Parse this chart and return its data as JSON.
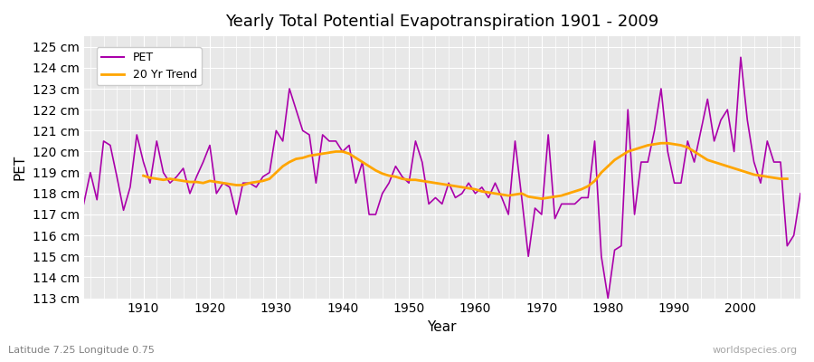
{
  "title": "Yearly Total Potential Evapotranspiration 1901 - 2009",
  "xlabel": "Year",
  "ylabel": "PET",
  "subtitle": "Latitude 7.25 Longitude 0.75",
  "watermark": "worldspecies.org",
  "pet_color": "#aa00aa",
  "trend_color": "#ffa500",
  "background_color": "#e8e8e8",
  "ylim": [
    113,
    125.5
  ],
  "yticks": [
    113,
    114,
    115,
    116,
    117,
    118,
    119,
    120,
    121,
    122,
    123,
    124,
    125
  ],
  "years": [
    1901,
    1902,
    1903,
    1904,
    1905,
    1906,
    1907,
    1908,
    1909,
    1910,
    1911,
    1912,
    1913,
    1914,
    1915,
    1916,
    1917,
    1918,
    1919,
    1920,
    1921,
    1922,
    1923,
    1924,
    1925,
    1926,
    1927,
    1928,
    1929,
    1930,
    1931,
    1932,
    1933,
    1934,
    1935,
    1936,
    1937,
    1938,
    1939,
    1940,
    1941,
    1942,
    1943,
    1944,
    1945,
    1946,
    1947,
    1948,
    1949,
    1950,
    1951,
    1952,
    1953,
    1954,
    1955,
    1956,
    1957,
    1958,
    1959,
    1960,
    1961,
    1962,
    1963,
    1964,
    1965,
    1966,
    1967,
    1968,
    1969,
    1970,
    1971,
    1972,
    1973,
    1974,
    1975,
    1976,
    1977,
    1978,
    1979,
    1980,
    1981,
    1982,
    1983,
    1984,
    1985,
    1986,
    1987,
    1988,
    1989,
    1990,
    1991,
    1992,
    1993,
    1994,
    1995,
    1996,
    1997,
    1998,
    1999,
    2000,
    2001,
    2002,
    2003,
    2004,
    2005,
    2006,
    2007,
    2008,
    2009
  ],
  "pet_values": [
    117.5,
    119.0,
    117.7,
    120.5,
    120.3,
    118.8,
    117.2,
    118.3,
    120.8,
    119.5,
    118.5,
    120.5,
    119.0,
    118.5,
    118.8,
    119.2,
    118.0,
    118.8,
    119.5,
    120.3,
    118.0,
    118.5,
    118.3,
    117.0,
    118.5,
    118.5,
    118.3,
    118.8,
    119.0,
    121.0,
    120.5,
    123.0,
    122.0,
    121.0,
    120.8,
    118.5,
    120.8,
    120.5,
    120.5,
    120.0,
    120.3,
    118.5,
    119.5,
    117.0,
    117.0,
    118.0,
    118.5,
    119.3,
    118.8,
    118.5,
    120.5,
    119.5,
    117.5,
    117.8,
    117.5,
    118.5,
    117.8,
    118.0,
    118.5,
    118.0,
    118.3,
    117.8,
    118.5,
    117.8,
    117.0,
    120.5,
    117.8,
    115.0,
    117.3,
    117.0,
    120.8,
    116.8,
    117.5,
    117.5,
    117.5,
    117.8,
    117.8,
    120.5,
    115.0,
    113.0,
    115.3,
    115.5,
    122.0,
    117.0,
    119.5,
    119.5,
    121.0,
    123.0,
    120.0,
    118.5,
    118.5,
    120.5,
    119.5,
    121.0,
    122.5,
    120.5,
    121.5,
    122.0,
    120.0,
    124.5,
    121.5,
    119.5,
    118.5,
    120.5,
    119.5,
    119.5,
    115.5,
    116.0,
    118.0
  ],
  "trend_values": [
    null,
    null,
    null,
    null,
    null,
    null,
    null,
    null,
    null,
    118.85,
    118.75,
    118.7,
    118.65,
    118.7,
    118.65,
    118.6,
    118.55,
    118.55,
    118.5,
    118.6,
    118.55,
    118.5,
    118.45,
    118.4,
    118.4,
    118.5,
    118.55,
    118.6,
    118.7,
    119.0,
    119.3,
    119.5,
    119.65,
    119.7,
    119.8,
    119.85,
    119.9,
    119.95,
    120.0,
    120.0,
    119.9,
    119.7,
    119.5,
    119.3,
    119.1,
    118.95,
    118.85,
    118.8,
    118.7,
    118.65,
    118.65,
    118.6,
    118.55,
    118.5,
    118.45,
    118.4,
    118.35,
    118.3,
    118.25,
    118.2,
    118.1,
    118.05,
    118.0,
    117.95,
    117.9,
    117.95,
    118.0,
    117.85,
    117.8,
    117.75,
    117.8,
    117.85,
    117.9,
    118.0,
    118.1,
    118.2,
    118.35,
    118.6,
    119.0,
    119.3,
    119.6,
    119.8,
    120.0,
    120.1,
    120.2,
    120.3,
    120.35,
    120.4,
    120.4,
    120.35,
    120.3,
    120.2,
    120.0,
    119.8,
    119.6,
    119.5,
    119.4,
    119.3,
    119.2,
    119.1,
    119.0,
    118.9,
    118.85,
    118.8,
    118.75,
    118.7,
    118.7,
    null
  ]
}
